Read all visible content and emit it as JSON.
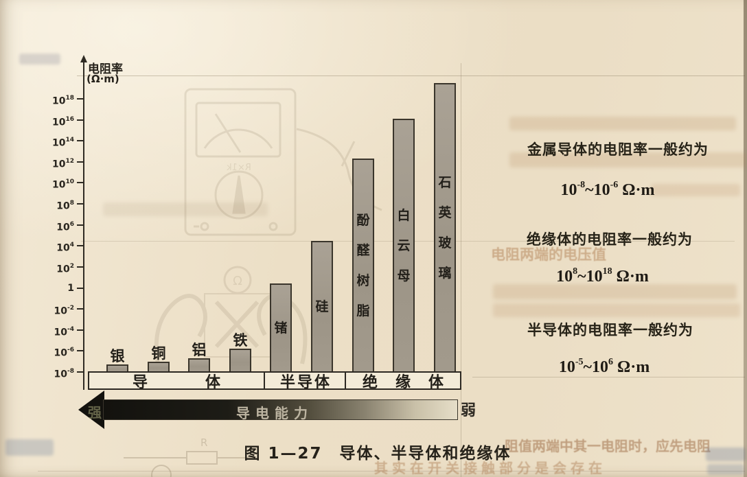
{
  "chart_data": {
    "type": "bar",
    "title": "图 1—27　导体、半导体和绝缘体",
    "y_axis_title_line1": "电阻率",
    "y_axis_title_line2": "(Ω·m)",
    "y_scale": "log10",
    "ylabel": "电阻率 (Ω·m)",
    "xlabel": "",
    "grid": false,
    "ylim_exponents": [
      -8,
      19.5
    ],
    "y_tick_exponents": [
      18,
      16,
      14,
      12,
      10,
      8,
      6,
      4,
      2,
      0,
      -2,
      -4,
      -6,
      -8
    ],
    "y_tick_zero_label": "1",
    "bars": [
      {
        "label": "银",
        "name": "silver",
        "group": "导体",
        "top_exponent": -7.3,
        "label_position": "above"
      },
      {
        "label": "铜",
        "name": "copper",
        "group": "导体",
        "top_exponent": -7.0,
        "label_position": "above"
      },
      {
        "label": "铝",
        "name": "aluminum",
        "group": "导体",
        "top_exponent": -6.7,
        "label_position": "above"
      },
      {
        "label": "铁",
        "name": "iron",
        "group": "导体",
        "top_exponent": -5.8,
        "label_position": "above"
      },
      {
        "label": "锗",
        "name": "germanium",
        "group": "半导体",
        "top_exponent": 0.4,
        "label_position": "inside"
      },
      {
        "label": "硅",
        "name": "silicon",
        "group": "半导体",
        "top_exponent": 4.5,
        "label_position": "inside"
      },
      {
        "label": "酚醛树脂",
        "name": "phenolic-resin",
        "group": "绝缘体",
        "top_exponent": 12.3,
        "label_position": "inside"
      },
      {
        "label": "白云母",
        "name": "mica",
        "group": "绝缘体",
        "top_exponent": 16.1,
        "label_position": "inside"
      },
      {
        "label": "石英玻璃",
        "name": "quartz-glass",
        "group": "绝缘体",
        "top_exponent": 19.5,
        "label_position": "inside"
      }
    ],
    "group_band": [
      {
        "label": "导体",
        "name": "conductor"
      },
      {
        "label": "半导体",
        "name": "semiconductor"
      },
      {
        "label": "绝缘体",
        "name": "insulator"
      }
    ],
    "x_arrow": {
      "left": "强",
      "center": "导电能力",
      "right": "弱"
    }
  },
  "annotations": [
    {
      "heading": "金属导体的电阻率一般约为",
      "range": {
        "base": "10",
        "from_exp": "-8",
        "sep": "~",
        "to_exp": "-6",
        "unit": "Ω·m"
      }
    },
    {
      "heading": "绝缘体的电阻率一般约为",
      "range": {
        "base": "10",
        "from_exp": "8",
        "sep": "~",
        "to_exp": "18",
        "unit": "Ω·m"
      }
    },
    {
      "heading": "半导体的电阻率一般约为",
      "range": {
        "base": "10",
        "from_exp": "-5",
        "sep": "~",
        "to_exp": "6",
        "unit": "Ω·m"
      }
    }
  ],
  "bleed_through": {
    "readable_fragments": [
      {
        "text": "电阻两端的电压值"
      },
      {
        "text": "阻值两端中其一电阻时，应先电阻"
      },
      {
        "text": "其实在开关接触部分是会存在"
      }
    ]
  }
}
